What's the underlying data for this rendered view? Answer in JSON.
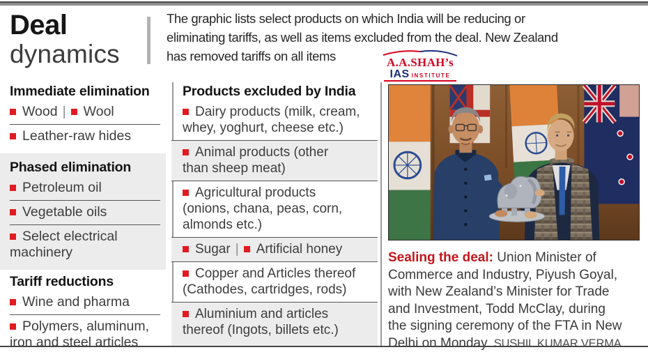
{
  "masthead": {
    "title_bold": "Deal",
    "title_light": "dynamics"
  },
  "intro": {
    "text": "The graphic lists select products on which India will be reducing or\neliminating tariffs, as well as items excluded from the deal. New Zealand\nhas removed tariffs on all items"
  },
  "logo": {
    "line1": "A.A.SHAH’s",
    "line2": "IAS",
    "line3": "INSTITUTE"
  },
  "left_column": {
    "sections": [
      {
        "title": "Immediate elimination",
        "shaded": false,
        "items": [
          {
            "parts": [
              "Wood",
              "Wool"
            ]
          },
          {
            "parts": [
              "Leather-raw hides"
            ]
          }
        ]
      },
      {
        "title": "Phased elimination",
        "shaded": true,
        "items": [
          {
            "parts": [
              "Petroleum oil"
            ]
          },
          {
            "parts": [
              "Vegetable oils"
            ]
          },
          {
            "parts": [
              "Select electrical\nmachinery"
            ]
          }
        ]
      },
      {
        "title": "Tariff reductions",
        "shaded": false,
        "items": [
          {
            "parts": [
              "Wine and pharma"
            ]
          },
          {
            "parts": [
              "Polymers, aluminum,\niron and steel articles"
            ]
          }
        ]
      }
    ]
  },
  "excluded_column": {
    "title": "Products excluded by India",
    "items": [
      {
        "parts": [
          "Dairy products (milk, cream,\nwhey, yoghurt, cheese etc.)"
        ],
        "shaded": false
      },
      {
        "parts": [
          "Animal products (other\nthan sheep meat)"
        ],
        "shaded": true
      },
      {
        "parts": [
          "Agricultural products\n(onions, chana, peas, corn,\nalmonds etc.)"
        ],
        "shaded": false
      },
      {
        "parts": [
          "Sugar",
          "Artificial honey"
        ],
        "shaded": true
      },
      {
        "parts": [
          "Copper and Articles thereof\n(Cathodes, cartridges, rods)"
        ],
        "shaded": false
      },
      {
        "parts": [
          "Aluminium and articles\nthereof (Ingots, billets etc.)"
        ],
        "shaded": true
      }
    ]
  },
  "photo_caption": {
    "lead": "Sealing the deal:",
    "body": " Union Minister of\nCommerce and Industry, Piyush Goyal,\nwith New Zealand’s Minister for Trade\nand Investment, Todd McClay, during\nthe signing ceremony of the FTA in New\nDelhi on Monday. ",
    "credit": "SUSHIL KUMAR VERMA"
  },
  "colors": {
    "accent_red": "#e01b22",
    "shaded_bg": "#ececec",
    "separator": "#555555",
    "logo_red": "#d50021",
    "logo_blue": "#1b2f7d",
    "caption_red": "#c4161c"
  }
}
